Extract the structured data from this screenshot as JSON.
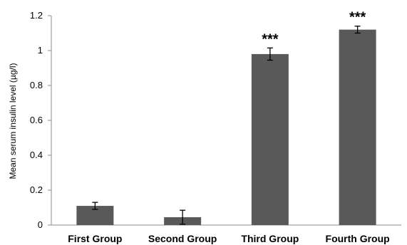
{
  "chart_data": {
    "type": "bar",
    "title": "",
    "xlabel": "",
    "ylabel": "Mean serum insulin level (µg/l)",
    "categories": [
      "First Group",
      "Second Group",
      "Third Group",
      "Fourth Group"
    ],
    "values": [
      0.11,
      0.045,
      0.98,
      1.12
    ],
    "errors": [
      0.02,
      0.04,
      0.035,
      0.02
    ],
    "annotations": [
      "",
      "",
      "***",
      "***"
    ],
    "ylim": [
      0,
      1.2
    ],
    "yticks": [
      "0",
      "0.2",
      "0.4",
      "0.6",
      "0.8",
      "1",
      "1.2"
    ],
    "grid": false,
    "legend": "none",
    "bar_color": "#595959",
    "error_color": "#000000"
  }
}
